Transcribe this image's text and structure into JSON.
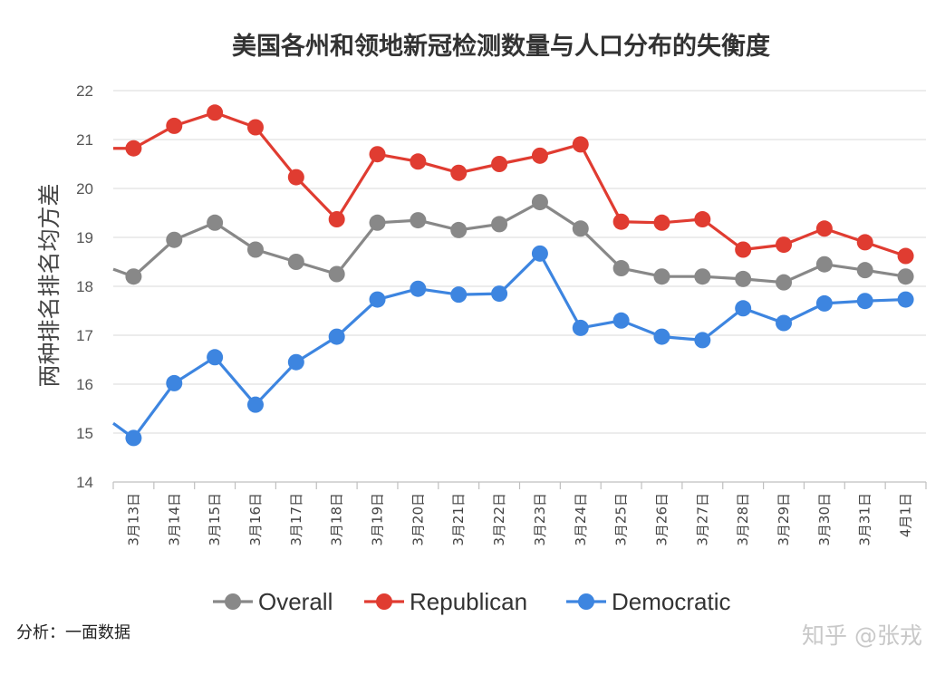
{
  "chart_data": {
    "type": "line",
    "title": "美国各州和领地新冠检测数量与人口分布的失衡度",
    "ylabel": "两种排名排名均方差",
    "xlabel": "",
    "ylim": [
      14,
      22
    ],
    "yticks": [
      14,
      15,
      16,
      17,
      18,
      19,
      20,
      21,
      22
    ],
    "grid": true,
    "legend_position": "bottom",
    "categories": [
      "3月13日",
      "3月14日",
      "3月15日",
      "3月16日",
      "3月17日",
      "3月18日",
      "3月19日",
      "3月20日",
      "3月21日",
      "3月22日",
      "3月23日",
      "3月24日",
      "3月25日",
      "3月26日",
      "3月27日",
      "3月28日",
      "3月29日",
      "3月30日",
      "3月31日",
      "4月1日"
    ],
    "series": [
      {
        "name": "Overall",
        "color": "#888888",
        "values": [
          18.2,
          18.95,
          19.3,
          18.75,
          18.5,
          18.25,
          19.3,
          19.35,
          19.15,
          19.27,
          19.72,
          19.18,
          18.37,
          18.2,
          18.2,
          18.15,
          18.08,
          18.45,
          18.33,
          18.2
        ]
      },
      {
        "name": "Republican",
        "color": "#e03c31",
        "values": [
          20.82,
          21.28,
          21.55,
          21.25,
          20.23,
          19.37,
          20.7,
          20.55,
          20.32,
          20.5,
          20.67,
          20.9,
          19.32,
          19.3,
          19.37,
          18.75,
          18.85,
          19.18,
          18.9,
          18.62
        ]
      },
      {
        "name": "Democratic",
        "color": "#3d85e0",
        "values": [
          14.9,
          16.02,
          16.55,
          15.58,
          16.45,
          16.97,
          17.73,
          17.95,
          17.83,
          17.85,
          18.67,
          17.15,
          17.3,
          16.97,
          16.9,
          17.55,
          17.25,
          17.65,
          17.7,
          17.73
        ]
      }
    ],
    "lead_in": {
      "Overall": 18.35,
      "Republican": 20.82,
      "Democratic": 15.2
    }
  },
  "source_label": "分析：一面数据",
  "watermark": "知乎 @张戎"
}
